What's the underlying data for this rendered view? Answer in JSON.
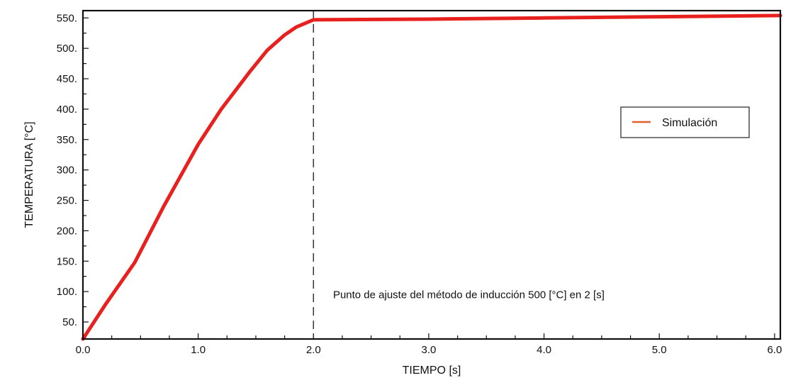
{
  "chart_data": {
    "type": "line",
    "title": "",
    "xlabel": "TIEMPO [s]",
    "ylabel": "TEMPERATURA [°C]",
    "xlim": [
      0,
      6.05
    ],
    "ylim": [
      22,
      562
    ],
    "x_ticks": [
      0,
      1,
      2,
      3,
      4,
      5,
      6
    ],
    "x_tick_labels": [
      "0.0",
      "1.0",
      "2.0",
      "3.0",
      "4.0",
      "5.0",
      "6.0"
    ],
    "y_ticks": [
      50,
      100,
      150,
      200,
      250,
      300,
      350,
      400,
      450,
      500,
      550
    ],
    "y_tick_labels": [
      "50.",
      "100.",
      "150.",
      "200.",
      "250.",
      "300.",
      "350.",
      "400.",
      "450.",
      "500.",
      "550."
    ],
    "grid": false,
    "legend_position": "right",
    "series": [
      {
        "name": "Simulación",
        "color": "#e8201e",
        "legend_color": "#e0602e",
        "x": [
          0.0,
          0.2,
          0.45,
          0.7,
          1.0,
          1.2,
          1.45,
          1.6,
          1.75,
          1.85,
          1.95,
          2.0,
          3.0,
          4.0,
          5.0,
          6.05
        ],
        "y": [
          22,
          80,
          148,
          240,
          342,
          400,
          462,
          497,
          522,
          535,
          543,
          547,
          548,
          550,
          552,
          554
        ]
      }
    ],
    "vline": {
      "x": 2.0,
      "style": "dashed",
      "color": "#333333"
    },
    "annotation": {
      "text": "Punto de ajuste del método de inducción 500 [°C] en 2 [s]",
      "x": 2.17,
      "y": 95
    }
  }
}
